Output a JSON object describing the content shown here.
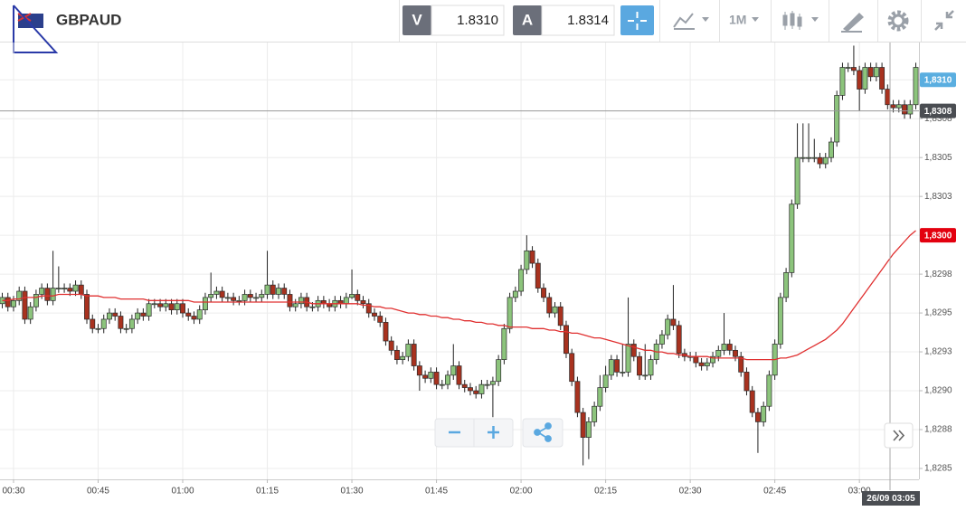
{
  "toolbar": {
    "symbol": "GBPAUD",
    "bid_label": "V",
    "bid": "1.8310",
    "ask_label": "A",
    "ask": "1.8314",
    "timeframe": "1M"
  },
  "chart_data": {
    "type": "candlestick",
    "up_color": "#8cc47c",
    "down_color": "#a8321f",
    "ma_color": "#e03030",
    "grid": true,
    "ylim": [
      1.82843,
      1.83124
    ],
    "yticks": [
      {
        "value": 1.8285,
        "label": "1,8285"
      },
      {
        "value": 1.82875,
        "label": "1,8288"
      },
      {
        "value": 1.829,
        "label": "1,8290"
      },
      {
        "value": 1.82925,
        "label": "1,8293"
      },
      {
        "value": 1.8295,
        "label": "1,8295"
      },
      {
        "value": 1.82975,
        "label": "1,8298"
      },
      {
        "value": 1.83,
        "label": "1,8300"
      },
      {
        "value": 1.83025,
        "label": "1,8303"
      },
      {
        "value": 1.8305,
        "label": "1,8305"
      },
      {
        "value": 1.83075,
        "label": "1,8308"
      },
      {
        "value": 1.831,
        "label": "1,8310"
      }
    ],
    "price_labels": [
      {
        "value": 1.831,
        "label": "1,8310",
        "color": "#5aaee0"
      },
      {
        "value": 1.8308,
        "label": "1,8308",
        "color": "#4a4d52",
        "line": true
      },
      {
        "value": 1.83,
        "label": "1,8300",
        "color": "#e3000f"
      }
    ],
    "crosshair_label": "26/09 03:05",
    "categories": [
      null,
      null,
      "00:30",
      null,
      null,
      null,
      null,
      null,
      null,
      null,
      null,
      null,
      null,
      null,
      null,
      null,
      null,
      "00:45",
      null,
      null,
      null,
      null,
      null,
      null,
      null,
      null,
      null,
      null,
      null,
      null,
      null,
      null,
      "01:00",
      null,
      null,
      null,
      null,
      null,
      null,
      null,
      null,
      null,
      null,
      null,
      null,
      null,
      null,
      "01:15",
      null,
      null,
      null,
      null,
      null,
      null,
      null,
      null,
      null,
      null,
      null,
      null,
      null,
      null,
      "01:30",
      null,
      null,
      null,
      null,
      null,
      null,
      null,
      null,
      null,
      null,
      null,
      null,
      null,
      null,
      "01:45",
      null,
      null,
      null,
      null,
      null,
      null,
      null,
      null,
      null,
      null,
      null,
      null,
      null,
      null,
      "02:00",
      null,
      null,
      null,
      null,
      null,
      null,
      null,
      null,
      null,
      null,
      null,
      null,
      null,
      null,
      "02:15",
      null,
      null,
      null,
      null,
      null,
      null,
      null,
      null,
      null,
      null,
      null,
      null,
      null,
      null,
      "02:30",
      null,
      null,
      null,
      null,
      null,
      null,
      null,
      null,
      null,
      null,
      null,
      null,
      null,
      null,
      "02:45",
      null,
      null,
      null,
      null,
      null,
      null,
      null,
      null,
      null,
      null,
      null,
      null,
      null,
      null,
      "03:00",
      null,
      null,
      null,
      null,
      null,
      null,
      null,
      null,
      null,
      null
    ],
    "open": [
      1.82956,
      1.8296,
      1.82954,
      1.82958,
      1.82964,
      1.82946,
      1.82954,
      1.82962,
      1.82966,
      1.82958,
      1.82966,
      1.82966,
      1.82966,
      1.82964,
      1.82968,
      1.82962,
      1.82946,
      1.8294,
      1.8294,
      1.82946,
      1.8295,
      1.82948,
      1.8294,
      1.8294,
      1.82946,
      1.8295,
      1.82948,
      1.82956,
      1.82956,
      1.82954,
      1.82956,
      1.82952,
      1.82956,
      1.8295,
      1.82948,
      1.82946,
      1.82952,
      1.8296,
      1.82962,
      1.82964,
      1.8296,
      1.8296,
      1.82958,
      1.82958,
      1.82962,
      1.8296,
      1.8296,
      1.82962,
      1.82968,
      1.82962,
      1.82966,
      1.82962,
      1.82954,
      1.82956,
      1.8296,
      1.82954,
      1.82954,
      1.82958,
      1.82956,
      1.82954,
      1.82958,
      1.82956,
      1.8296,
      1.82962,
      1.82958,
      1.82956,
      1.8295,
      1.82948,
      1.82944,
      1.82932,
      1.82926,
      1.8292,
      1.82922,
      1.8293,
      1.82916,
      1.8291,
      1.82908,
      1.82912,
      1.82904,
      1.82904,
      1.8291,
      1.82916,
      1.82904,
      1.82902,
      1.829,
      1.82898,
      1.82904,
      1.82904,
      1.82906,
      1.8292,
      1.8294,
      1.8296,
      1.82964,
      1.82978,
      1.8299,
      1.82982,
      1.82966,
      1.8296,
      1.8295,
      1.82954,
      1.82942,
      1.82924,
      1.82906,
      1.82886,
      1.8287,
      1.8288,
      1.8289,
      1.82902,
      1.8291,
      1.8292,
      1.82912,
      1.82912,
      1.8293,
      1.82922,
      1.8291,
      1.8291,
      1.8292,
      1.8293,
      1.82936,
      1.82946,
      1.82942,
      1.82924,
      1.82922,
      1.82922,
      1.82918,
      1.82916,
      1.82918,
      1.82922,
      1.82926,
      1.8293,
      1.82926,
      1.82922,
      1.82912,
      1.829,
      1.82886,
      1.8288,
      1.8289,
      1.8291,
      1.8293,
      1.8296,
      1.82976,
      1.8302,
      1.8305,
      1.8305,
      1.8305,
      1.8305,
      1.83046,
      1.8305,
      1.8306,
      1.8309,
      1.83108,
      1.83108,
      1.83106,
      1.83094,
      1.83108,
      1.83102,
      1.83108,
      1.83094,
      1.83084,
      1.83082,
      1.83084,
      1.83078,
      1.83084
    ],
    "high": [
      1.82963,
      1.82963,
      1.82961,
      1.82967,
      1.82967,
      1.82957,
      1.82965,
      1.82969,
      1.82969,
      1.8299,
      1.8298,
      1.82969,
      1.82969,
      1.82971,
      1.82971,
      1.82965,
      1.82949,
      1.82943,
      1.82949,
      1.82953,
      1.82953,
      1.82951,
      1.82943,
      1.82949,
      1.82953,
      1.82953,
      1.82959,
      1.82959,
      1.82959,
      1.82959,
      1.82959,
      1.82959,
      1.82959,
      1.82953,
      1.82951,
      1.82955,
      1.82963,
      1.82976,
      1.82967,
      1.82967,
      1.82963,
      1.82963,
      1.82961,
      1.82965,
      1.82965,
      1.82963,
      1.82965,
      1.8299,
      1.82971,
      1.82969,
      1.82969,
      1.82965,
      1.82959,
      1.82963,
      1.82963,
      1.82957,
      1.82961,
      1.82961,
      1.82959,
      1.82961,
      1.82961,
      1.82963,
      1.82978,
      1.82965,
      1.82961,
      1.82959,
      1.82953,
      1.82951,
      1.82947,
      1.82935,
      1.82929,
      1.82925,
      1.82933,
      1.82933,
      1.82919,
      1.82913,
      1.82915,
      1.82915,
      1.82907,
      1.82913,
      1.8293,
      1.82919,
      1.82907,
      1.82905,
      1.82903,
      1.82907,
      1.82907,
      1.82909,
      1.82923,
      1.82943,
      1.82963,
      1.82967,
      1.82981,
      1.83,
      1.82993,
      1.82985,
      1.82969,
      1.82963,
      1.82957,
      1.82957,
      1.82945,
      1.82927,
      1.82909,
      1.82889,
      1.82883,
      1.82893,
      1.8291,
      1.82916,
      1.82923,
      1.82923,
      1.8293,
      1.8296,
      1.82933,
      1.82925,
      1.8293,
      1.82923,
      1.82933,
      1.82939,
      1.82949,
      1.82968,
      1.82945,
      1.82927,
      1.82925,
      1.82925,
      1.82921,
      1.82921,
      1.82925,
      1.82929,
      1.8295,
      1.82933,
      1.82929,
      1.82925,
      1.82915,
      1.82903,
      1.82889,
      1.82893,
      1.82913,
      1.82933,
      1.82963,
      1.82979,
      1.83023,
      1.83072,
      1.83072,
      1.83072,
      1.83062,
      1.83053,
      1.83053,
      1.83063,
      1.83093,
      1.83111,
      1.83111,
      1.83122,
      1.83109,
      1.83111,
      1.83111,
      1.83111,
      1.83111,
      1.83097,
      1.83087,
      1.83087,
      1.83087,
      1.83087,
      1.83111
    ],
    "low": [
      1.82953,
      1.82951,
      1.82951,
      1.82955,
      1.82943,
      1.82943,
      1.82951,
      1.82959,
      1.82955,
      1.82955,
      1.82963,
      1.82963,
      1.82961,
      1.82961,
      1.82959,
      1.82943,
      1.82937,
      1.82937,
      1.82937,
      1.82943,
      1.82945,
      1.82937,
      1.82937,
      1.82937,
      1.82943,
      1.82945,
      1.82945,
      1.82953,
      1.82951,
      1.82951,
      1.82949,
      1.82949,
      1.82947,
      1.82945,
      1.82943,
      1.82943,
      1.82949,
      1.82957,
      1.82959,
      1.82957,
      1.82957,
      1.82955,
      1.82955,
      1.82955,
      1.82957,
      1.82957,
      1.82957,
      1.82959,
      1.82959,
      1.82959,
      1.82959,
      1.82951,
      1.82951,
      1.82953,
      1.82951,
      1.82951,
      1.82951,
      1.82953,
      1.82951,
      1.82951,
      1.82953,
      1.82953,
      1.82959,
      1.82955,
      1.82953,
      1.82947,
      1.82945,
      1.82941,
      1.82929,
      1.82923,
      1.82917,
      1.82917,
      1.82919,
      1.82913,
      1.829,
      1.82905,
      1.82905,
      1.82901,
      1.82901,
      1.82901,
      1.82907,
      1.82901,
      1.82899,
      1.82897,
      1.82895,
      1.82895,
      1.82901,
      1.82883,
      1.82903,
      1.82917,
      1.82937,
      1.82957,
      1.82961,
      1.82975,
      1.82979,
      1.82963,
      1.82957,
      1.82947,
      1.82947,
      1.82939,
      1.82921,
      1.82903,
      1.82883,
      1.82852,
      1.82856,
      1.82877,
      1.82887,
      1.82899,
      1.82907,
      1.82909,
      1.82909,
      1.82909,
      1.82919,
      1.82907,
      1.82907,
      1.82907,
      1.82917,
      1.82927,
      1.82933,
      1.82939,
      1.82921,
      1.82919,
      1.82919,
      1.82915,
      1.82913,
      1.82913,
      1.82915,
      1.82919,
      1.82923,
      1.82923,
      1.82919,
      1.82909,
      1.82897,
      1.82883,
      1.8286,
      1.82877,
      1.82887,
      1.82907,
      1.82927,
      1.82957,
      1.82973,
      1.83017,
      1.83047,
      1.83047,
      1.83047,
      1.83043,
      1.83043,
      1.83047,
      1.83057,
      1.83087,
      1.83105,
      1.83103,
      1.8308,
      1.83091,
      1.83099,
      1.83099,
      1.83091,
      1.83081,
      1.83079,
      1.83079,
      1.83075,
      1.83075,
      1.83081
    ],
    "close": [
      1.8296,
      1.82954,
      1.82958,
      1.82964,
      1.82946,
      1.82954,
      1.82962,
      1.82966,
      1.82958,
      1.82966,
      1.82966,
      1.82966,
      1.82964,
      1.82968,
      1.82962,
      1.82946,
      1.8294,
      1.8294,
      1.82946,
      1.8295,
      1.82948,
      1.8294,
      1.8294,
      1.82946,
      1.8295,
      1.82948,
      1.82956,
      1.82956,
      1.82954,
      1.82956,
      1.82952,
      1.82956,
      1.8295,
      1.82948,
      1.82946,
      1.82952,
      1.8296,
      1.82962,
      1.82964,
      1.8296,
      1.8296,
      1.82958,
      1.82958,
      1.82962,
      1.8296,
      1.8296,
      1.82962,
      1.82968,
      1.82962,
      1.82966,
      1.82962,
      1.82954,
      1.82956,
      1.8296,
      1.82954,
      1.82954,
      1.82958,
      1.82956,
      1.82954,
      1.82958,
      1.82956,
      1.8296,
      1.82962,
      1.82958,
      1.82956,
      1.8295,
      1.82948,
      1.82944,
      1.82932,
      1.82926,
      1.8292,
      1.82922,
      1.8293,
      1.82916,
      1.8291,
      1.82908,
      1.82912,
      1.82904,
      1.82904,
      1.8291,
      1.82916,
      1.82904,
      1.82902,
      1.829,
      1.82898,
      1.82904,
      1.82904,
      1.82906,
      1.8292,
      1.8294,
      1.8296,
      1.82964,
      1.82978,
      1.8299,
      1.82982,
      1.82966,
      1.8296,
      1.8295,
      1.82954,
      1.82942,
      1.82924,
      1.82906,
      1.82886,
      1.8287,
      1.8288,
      1.8289,
      1.82902,
      1.8291,
      1.8292,
      1.82912,
      1.82912,
      1.8293,
      1.82922,
      1.8291,
      1.8291,
      1.8292,
      1.8293,
      1.82936,
      1.82946,
      1.82942,
      1.82924,
      1.82922,
      1.82922,
      1.82918,
      1.82916,
      1.82918,
      1.82922,
      1.82926,
      1.8293,
      1.82926,
      1.82922,
      1.82912,
      1.829,
      1.82886,
      1.8288,
      1.8289,
      1.8291,
      1.8293,
      1.8296,
      1.82976,
      1.8302,
      1.8305,
      1.8305,
      1.8305,
      1.8305,
      1.83046,
      1.8305,
      1.8306,
      1.8309,
      1.83108,
      1.83108,
      1.83106,
      1.83094,
      1.83108,
      1.83102,
      1.83108,
      1.83094,
      1.83084,
      1.83082,
      1.83084,
      1.83078,
      1.83084,
      1.83108
    ],
    "ma": [
      1.82958,
      1.82958,
      1.82959,
      1.82959,
      1.8296,
      1.8296,
      1.8296,
      1.82961,
      1.82961,
      1.82961,
      1.82962,
      1.82962,
      1.82962,
      1.82962,
      1.82962,
      1.82961,
      1.82961,
      1.82961,
      1.8296,
      1.8296,
      1.8296,
      1.82959,
      1.82959,
      1.82959,
      1.82959,
      1.82959,
      1.82958,
      1.82958,
      1.82958,
      1.82958,
      1.82958,
      1.82958,
      1.82958,
      1.82958,
      1.82957,
      1.82957,
      1.82957,
      1.82957,
      1.82957,
      1.82957,
      1.82957,
      1.82957,
      1.82957,
      1.82957,
      1.82957,
      1.82957,
      1.82957,
      1.82957,
      1.82957,
      1.82957,
      1.82957,
      1.82957,
      1.82957,
      1.82957,
      1.82957,
      1.82956,
      1.82956,
      1.82956,
      1.82956,
      1.82956,
      1.82956,
      1.82956,
      1.82956,
      1.82956,
      1.82955,
      1.82955,
      1.82954,
      1.82954,
      1.82953,
      1.82953,
      1.82952,
      1.82951,
      1.8295,
      1.8295,
      1.82949,
      1.82949,
      1.82948,
      1.82948,
      1.82947,
      1.82947,
      1.82946,
      1.82946,
      1.82945,
      1.82945,
      1.82944,
      1.82944,
      1.82943,
      1.82943,
      1.82942,
      1.82942,
      1.82941,
      1.82941,
      1.82941,
      1.82941,
      1.8294,
      1.8294,
      1.8294,
      1.82939,
      1.82939,
      1.82938,
      1.82938,
      1.82937,
      1.82937,
      1.82936,
      1.82935,
      1.82934,
      1.82934,
      1.82933,
      1.82932,
      1.82931,
      1.8293,
      1.82929,
      1.82928,
      1.82927,
      1.82926,
      1.82926,
      1.82925,
      1.82925,
      1.82924,
      1.82924,
      1.82923,
      1.82923,
      1.82922,
      1.82922,
      1.82922,
      1.82922,
      1.82921,
      1.82921,
      1.82921,
      1.82921,
      1.82921,
      1.82921,
      1.8292,
      1.8292,
      1.8292,
      1.8292,
      1.8292,
      1.8292,
      1.82921,
      1.82921,
      1.82922,
      1.82923,
      1.82925,
      1.82927,
      1.82929,
      1.82931,
      1.82933,
      1.82936,
      1.82939,
      1.82943,
      1.82948,
      1.82953,
      1.82958,
      1.82963,
      1.82968,
      1.82973,
      1.82978,
      1.82983,
      1.82988,
      1.82992,
      1.82996,
      1.83,
      1.83003
    ]
  }
}
